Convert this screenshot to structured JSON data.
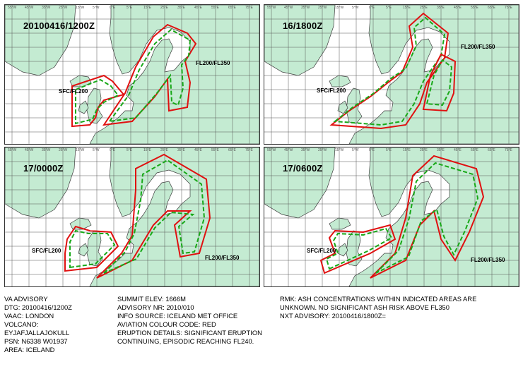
{
  "panels": [
    {
      "title": "20100416/1200Z",
      "label_a": "SFC/FL200",
      "label_b": "FL200/FL350"
    },
    {
      "title": "16/1800Z",
      "label_a": "SFC/FL200",
      "label_b": "FL200/FL350"
    },
    {
      "title": "17/0000Z",
      "label_a": "SFC/FL200",
      "label_b": "FL200/FL350"
    },
    {
      "title": "17/0600Z",
      "label_a": "SFC/FL200",
      "label_b": "FL200/FL350"
    }
  ],
  "lon_ticks": [
    "55°W",
    "45°W",
    "35°W",
    "25°W",
    "15°W",
    "5°W",
    "0°E",
    "5°E",
    "15°E",
    "25°E",
    "35°E",
    "45°E",
    "55°E",
    "65°E",
    "75°E"
  ],
  "colors": {
    "land": "#c4ebd2",
    "sea": "#ffffff",
    "grid": "#555555",
    "coast": "#3c3c3c",
    "red": "#e01010",
    "green": "#18a818"
  },
  "advisory": {
    "col1": [
      "VA ADVISORY",
      "DTG:  20100416/1200Z",
      "VAAC:  LONDON",
      "VOLCANO:",
      "EYJAFJALLAJOKULL",
      "PSN:  N6338 W01937",
      "AREA:  ICELAND"
    ],
    "col2": [
      "SUMMIT ELEV:  1666M",
      "ADVISORY NR:  2010/010",
      "INFO SOURCE:  ICELAND MET OFFICE",
      "AVIATION COLOUR CODE:  RED",
      "ERUPTION DETAILS:  SIGNIFICANT ERUPTION",
      "CONTINUING, EPISODIC REACHING FL240."
    ],
    "col3": [
      "RMK:  ASH CONCENTRATIONS WITHIN INDICATED AREAS ARE",
      "UNKNOWN. NO SIGNIFICANT ASH RISK ABOVE FL350",
      "NXT ADVISORY:  20100416/1800Z="
    ]
  }
}
